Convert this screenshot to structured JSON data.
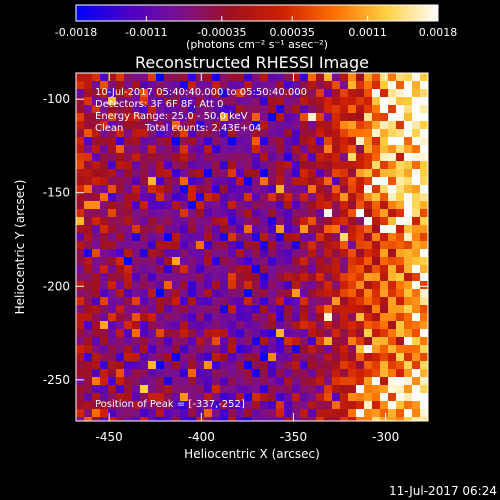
{
  "chart_data": {
    "type": "heatmap",
    "title": "Reconstructed RHESSI Image",
    "xlabel": "Heliocentric X (arcsec)",
    "ylabel": "Heliocentric Y (arcsec)",
    "xlim": [
      -468,
      -277
    ],
    "ylim": [
      -272,
      -86
    ],
    "x_ticks": [
      -450,
      -400,
      -350,
      -300
    ],
    "x_tick_labels": [
      "-450",
      "-400",
      "-350",
      "-300"
    ],
    "y_ticks": [
      -100,
      -150,
      -200,
      -250
    ],
    "y_tick_labels": [
      "-100",
      "-150",
      "-200",
      "-250"
    ],
    "colorbar": {
      "range": [
        -0.0018,
        0.0018
      ],
      "ticks": [
        -0.0018,
        -0.0011,
        -0.00035,
        0.00035,
        0.0011,
        0.0018
      ],
      "tick_labels": [
        "-0.0018",
        "-0.0011",
        "-0.00035",
        "0.00035",
        "0.0011",
        "0.0018"
      ],
      "unit_label": "(photons cm⁻² s⁻¹ asec⁻²)",
      "colors": [
        "#0000ff",
        "#4a00c8",
        "#7a1090",
        "#a01020",
        "#d02000",
        "#ff7000",
        "#ffd040",
        "#ffffff"
      ]
    },
    "annotations": {
      "time_range": "10-Jul-2017 05:40:40.000 to 05:50:40.000",
      "detectors": "Detectors: 3F 6F 8F, Att 0",
      "energy": "Energy Range: 25.0 - 50.0 keV",
      "algorithm": "Clean",
      "counts": "Total counts: 2.43E+04",
      "peak": "Position of Peak = [-337,-252]"
    },
    "peak_position": [
      -337,
      -252
    ],
    "grid": false
  },
  "footer_timestamp": "11-Jul-2017 06:24"
}
